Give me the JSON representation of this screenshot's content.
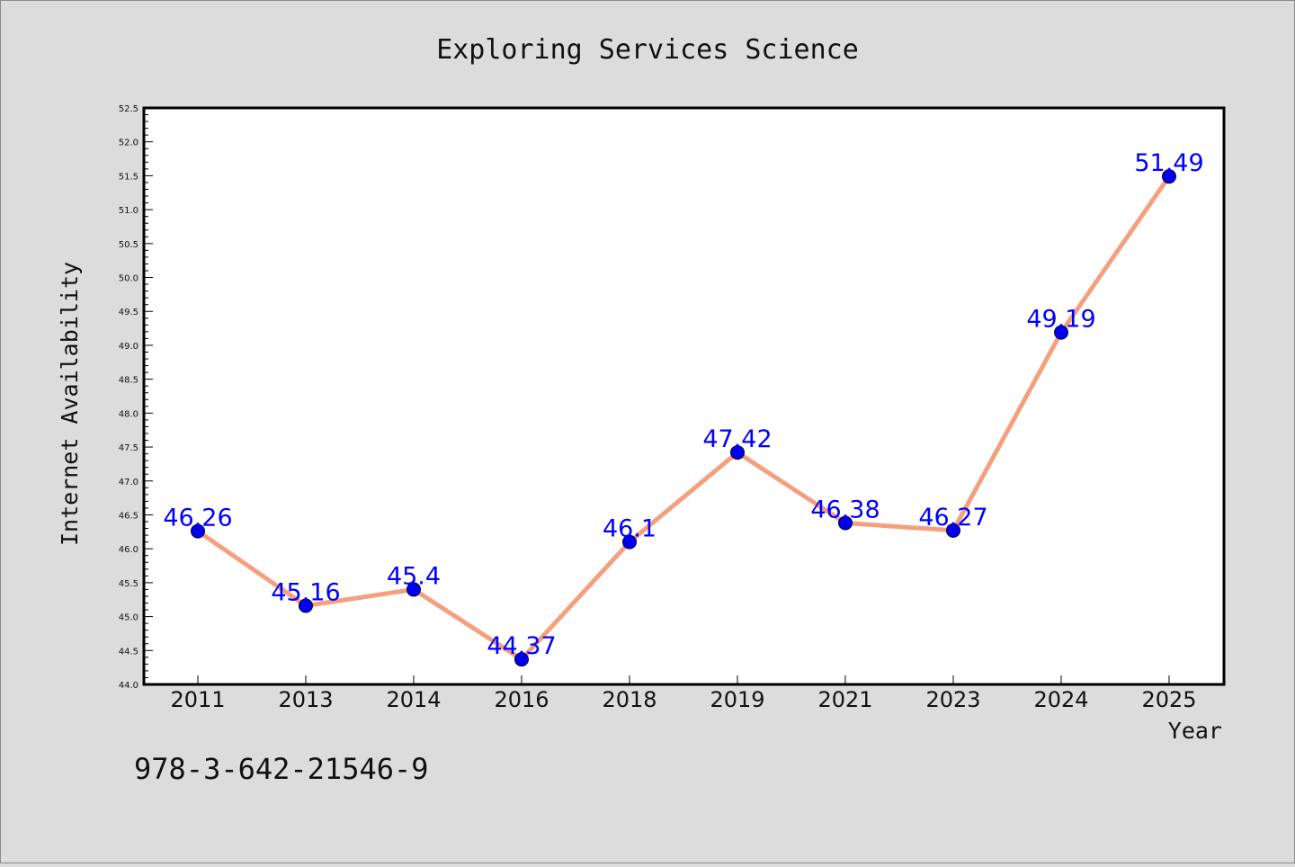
{
  "chart_data": {
    "type": "line",
    "title": "Exploring Services Science",
    "xlabel": "Year",
    "ylabel": "Internet Availability",
    "categories": [
      "2011",
      "2013",
      "2014",
      "2016",
      "2018",
      "2019",
      "2021",
      "2023",
      "2024",
      "2025"
    ],
    "series": [
      {
        "values": [
          46.26,
          45.16,
          45.4,
          44.37,
          46.1,
          47.42,
          46.38,
          46.27,
          49.19,
          51.49
        ],
        "data_labels": [
          "46.26",
          "45.16",
          "45.4",
          "44.37",
          "46.1",
          "47.42",
          "46.38",
          "46.27",
          "49.19",
          "51.49"
        ]
      }
    ],
    "ylim": [
      44.0,
      52.5
    ],
    "yticks": [
      "44.0",
      "44.5",
      "45.0",
      "45.5",
      "46.0",
      "46.5",
      "47.0",
      "47.5",
      "48.0",
      "48.5",
      "49.0",
      "49.5",
      "50.0",
      "50.5",
      "51.0",
      "51.5",
      "52.0",
      "52.5"
    ],
    "grid": false,
    "legend": "none",
    "colors": {
      "line": "#f4a07f",
      "marker": "#0000ee",
      "data_label": "#0000ff",
      "background": "#dcdcdc",
      "plot_area": "#ffffff"
    }
  },
  "caption": "978-3-642-21546-9"
}
